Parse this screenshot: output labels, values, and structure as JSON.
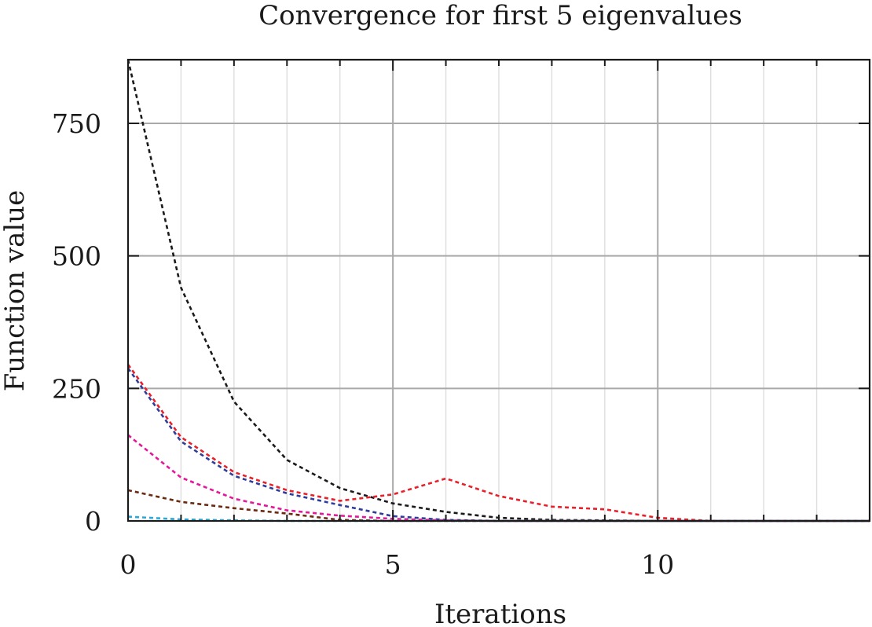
{
  "chart_data": {
    "type": "line",
    "title": "Convergence for first 5 eigenvalues",
    "xlabel": "Iterations",
    "ylabel": "Function value",
    "xlim": [
      0,
      14
    ],
    "ylim": [
      0,
      870
    ],
    "xticks": [
      0,
      5,
      10
    ],
    "yticks": [
      0,
      250,
      500,
      750
    ],
    "x_minor_ticks": [
      1,
      2,
      3,
      4,
      6,
      7,
      8,
      9,
      11,
      12,
      13
    ],
    "grid": true,
    "series": [
      {
        "color": "#1a1a1a",
        "x": [
          0,
          1,
          2,
          3,
          4,
          5,
          6,
          7,
          8,
          9,
          10,
          11,
          12,
          13,
          14
        ],
        "y": [
          870,
          440,
          225,
          115,
          62,
          33,
          17,
          6,
          2,
          1,
          0,
          0,
          0,
          0,
          0
        ]
      },
      {
        "color": "#e8202a",
        "x": [
          0,
          1,
          2,
          3,
          4,
          5,
          6,
          7,
          8,
          9,
          10,
          11,
          12,
          13,
          14
        ],
        "y": [
          295,
          158,
          92,
          58,
          38,
          50,
          80,
          47,
          27,
          22,
          6,
          0,
          0,
          0,
          0
        ]
      },
      {
        "color": "#2e3c9a",
        "x": [
          0,
          1,
          2,
          3,
          4,
          5,
          6,
          7,
          8,
          9,
          10,
          11,
          12,
          13,
          14
        ],
        "y": [
          288,
          150,
          85,
          52,
          30,
          9,
          2,
          0,
          0,
          0,
          0,
          0,
          0,
          0,
          0
        ]
      },
      {
        "color": "#e6169a",
        "x": [
          0,
          1,
          2,
          3,
          4,
          5,
          6,
          7,
          8,
          9,
          10,
          11,
          12,
          13,
          14
        ],
        "y": [
          162,
          82,
          42,
          20,
          10,
          4,
          1,
          0,
          0,
          0,
          0,
          0,
          0,
          0,
          0
        ]
      },
      {
        "color": "#6b2a10",
        "x": [
          0,
          1,
          2,
          3,
          4,
          5,
          6,
          7,
          8,
          9,
          10,
          11,
          12,
          13,
          14
        ],
        "y": [
          58,
          36,
          24,
          14,
          2,
          0,
          0,
          0,
          0,
          0,
          0,
          0,
          0,
          0,
          0
        ]
      },
      {
        "color": "#2aa9d8",
        "x": [
          0,
          1,
          2,
          3,
          4,
          5,
          6,
          7,
          8,
          9,
          10,
          11,
          12,
          13,
          14
        ],
        "y": [
          8,
          3,
          1,
          0,
          0,
          0,
          0,
          0,
          0,
          0,
          0,
          0,
          0,
          0,
          0
        ]
      }
    ]
  }
}
